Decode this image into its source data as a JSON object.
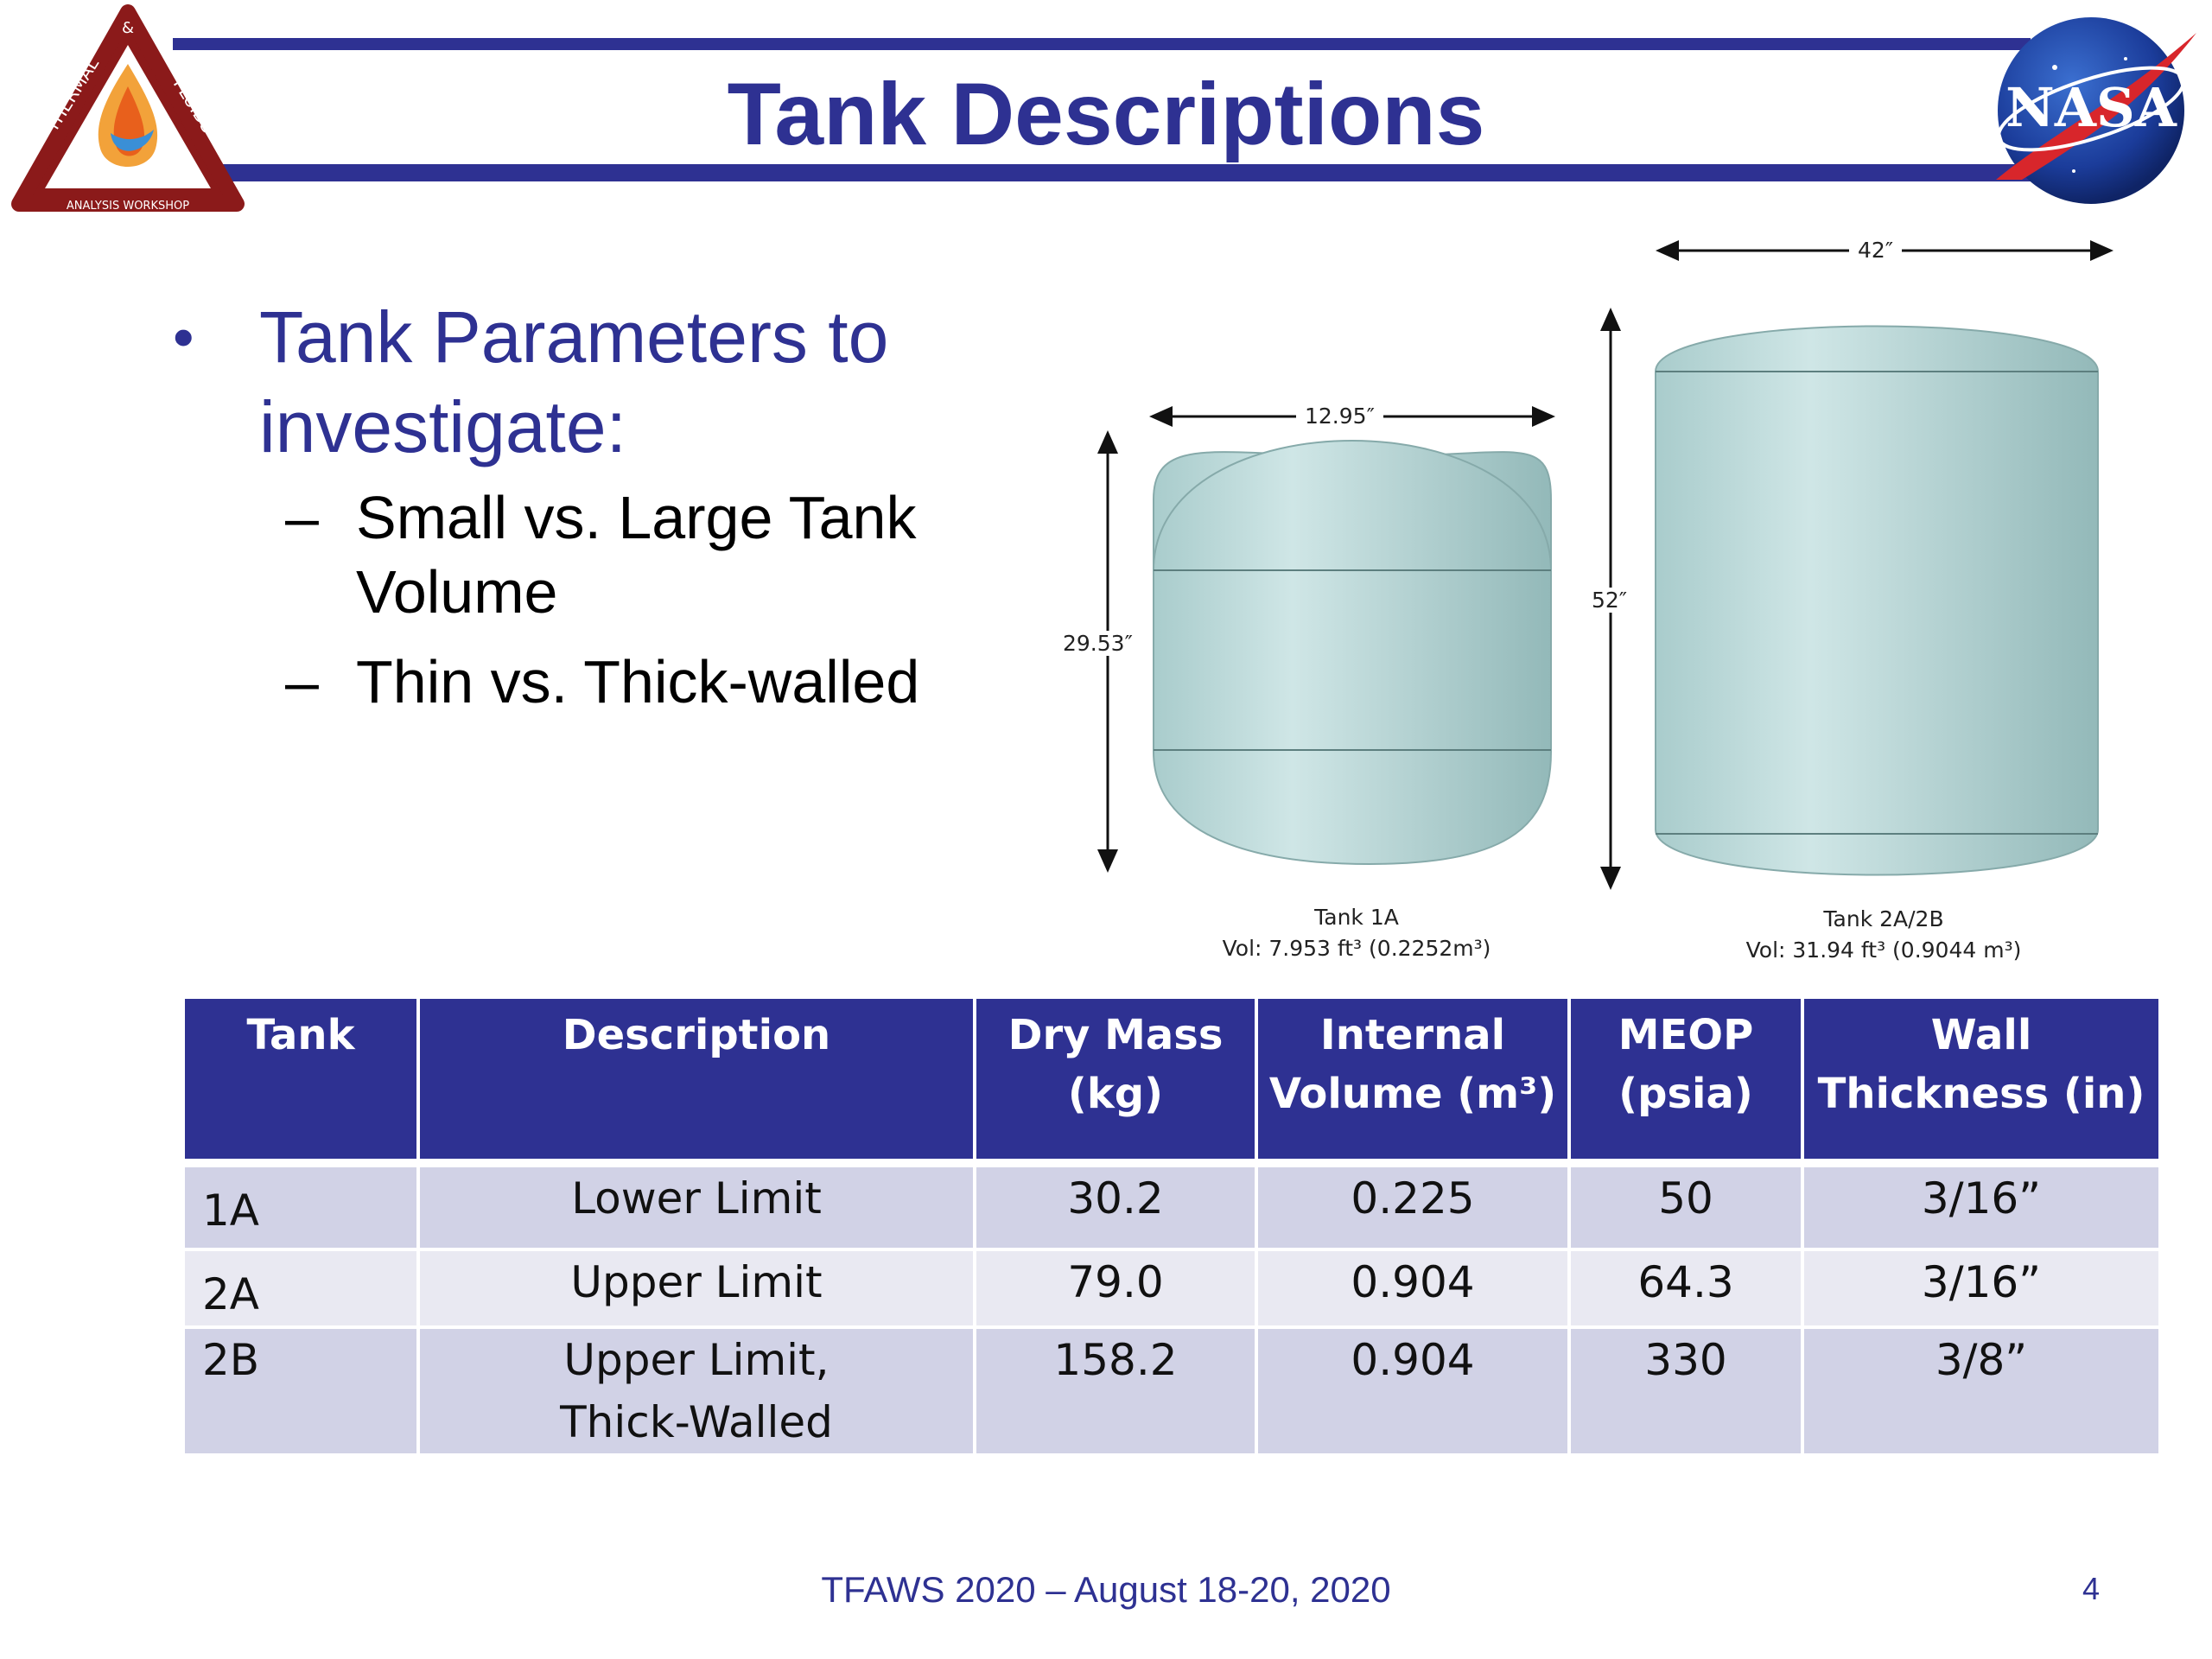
{
  "slide": {
    "title": "Tank Descriptions",
    "logo_left_text": [
      "THERMAL",
      "&",
      "FLUIDS",
      "ANALYSIS WORKSHOP"
    ],
    "logo_right_text": "NASA"
  },
  "bullets": {
    "main": "Tank Parameters to investigate:",
    "sub": [
      "Small vs. Large Tank Volume",
      "Thin vs. Thick-walled"
    ]
  },
  "figure": {
    "tank1": {
      "width_label": "12.95″",
      "height_label": "29.53″",
      "name": "Tank 1A",
      "volume": "Vol: 7.953 ft³ (0.2252m³)"
    },
    "tank2": {
      "width_label": "42″",
      "height_label": "52″",
      "name": "Tank 2A/2B",
      "volume": "Vol: 31.94 ft³ (0.9044 m³)"
    }
  },
  "table": {
    "headers": [
      "Tank",
      "Description",
      "Dry Mass (kg)",
      "Internal Volume (m³)",
      "MEOP (psia)",
      "Wall Thickness (in)"
    ],
    "rows": [
      [
        "1A",
        "Lower Limit",
        "30.2",
        "0.225",
        "50",
        "3/16”"
      ],
      [
        "2A",
        "Upper Limit",
        "79.0",
        "0.904",
        "64.3",
        "3/16”"
      ],
      [
        "2B",
        "Upper Limit, Thick-Walled",
        "158.2",
        "0.904",
        "330",
        "3/8”"
      ]
    ]
  },
  "footer": {
    "text": "TFAWS 2020 – August 18-20, 2020",
    "page": "4"
  },
  "colors": {
    "accent": "#2e3192",
    "row_dark": "#d1d2e6",
    "row_light": "#e9e9f2",
    "tank": "#b8d8d8"
  }
}
